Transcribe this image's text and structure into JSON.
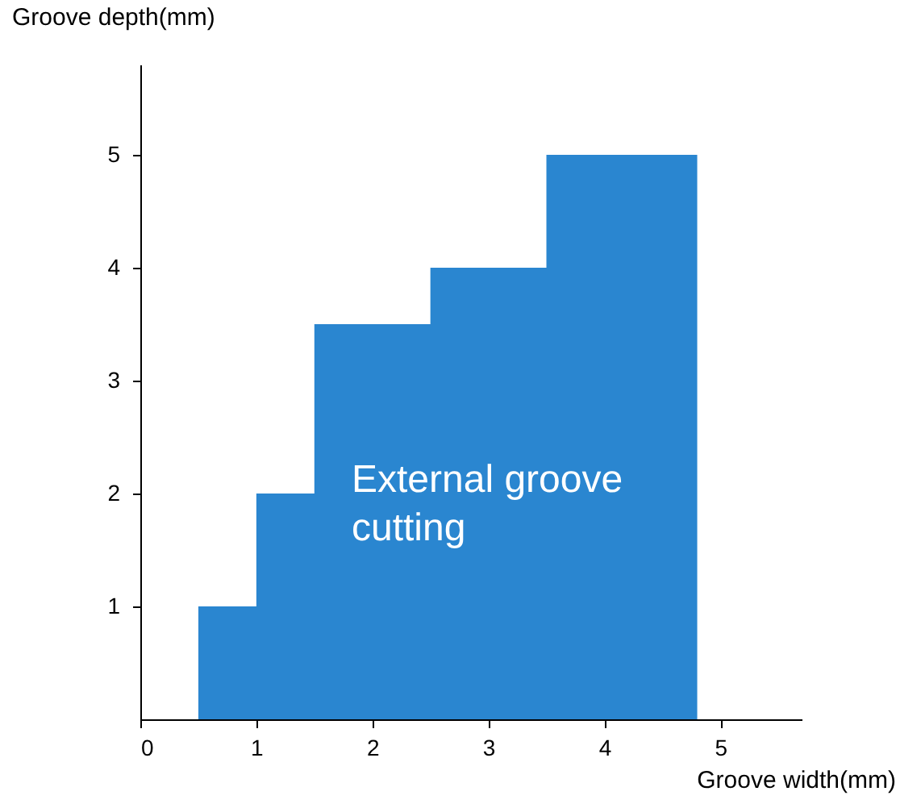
{
  "chart_data": {
    "type": "area",
    "xlabel": "Groove width(mm)",
    "ylabel": "Groove depth(mm)",
    "x": [
      0.5,
      1,
      1.5,
      2.5,
      3.5,
      4.8
    ],
    "series": [
      {
        "color": "#2a86d0",
        "values": [
          1,
          2,
          3.5,
          4,
          5,
          5
        ]
      }
    ],
    "xlim": [
      0,
      5.7
    ],
    "ylim": [
      0,
      5.8
    ],
    "xticks": [
      0,
      1,
      2,
      3,
      4,
      5
    ],
    "yticks": [
      1,
      2,
      3,
      4,
      5
    ],
    "annotations": [
      "External groove\ncutting"
    ],
    "grid": false
  }
}
